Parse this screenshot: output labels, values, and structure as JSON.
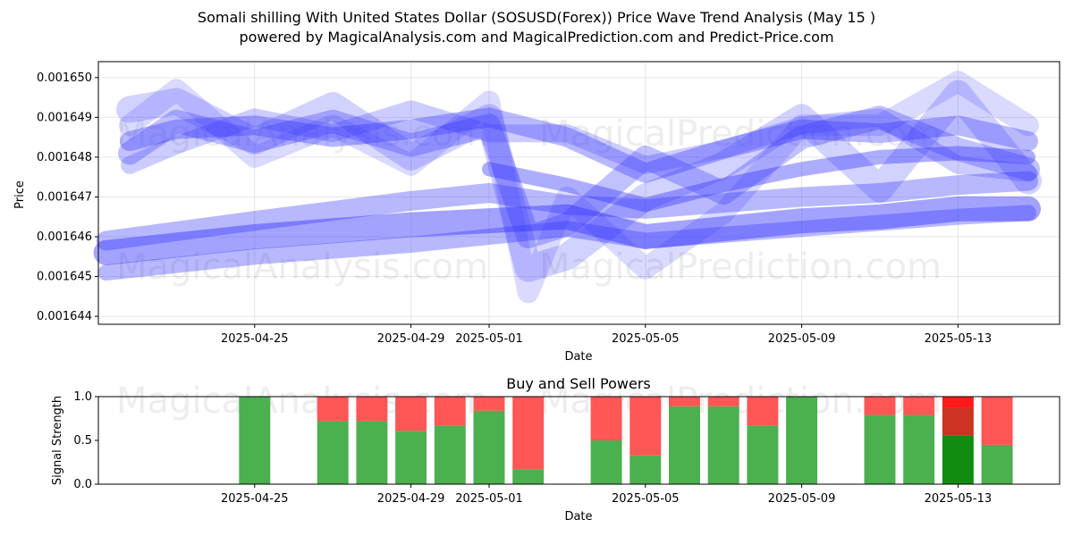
{
  "header": {
    "title": "Somali shilling With United States Dollar (SOSUSD(Forex)) Price Wave Trend Analysis (May 15 )",
    "subtitle": "powered by MagicalAnalysis.com and MagicalPrediction.com and Predict-Price.com"
  },
  "watermarks": [
    "MagicalAnalysis.com",
    "MagicalPrediction.com"
  ],
  "chart_data": [
    {
      "type": "line",
      "xlabel": "Date",
      "ylabel": "Price",
      "ylim": [
        0.0016438,
        0.0016504
      ],
      "x_range": [
        -2,
        22.6
      ],
      "date_start": "2025-04-23",
      "y_ticks": [
        0.001644,
        0.001645,
        0.001646,
        0.001647,
        0.001648,
        0.001649,
        0.00165
      ],
      "y_tick_labels": [
        "0.001644",
        "0.001645",
        "0.001646",
        "0.001647",
        "0.001648",
        "0.001649",
        "0.001650"
      ],
      "x_ticks": [
        2,
        6,
        8,
        12,
        16,
        20
      ],
      "x_tick_labels": [
        "2025-04-25",
        "2025-04-29",
        "2025-05-01",
        "2025-05-05",
        "2025-05-09",
        "2025-05-13"
      ],
      "grid": true,
      "series": [
        {
          "name": "wave-low-1",
          "width": 28,
          "opacity": 0.45,
          "x": [
            -1.8,
            2,
            6,
            10,
            12,
            16,
            18,
            20,
            21.8
          ],
          "y": [
            0.0016456,
            0.001646,
            0.0016463,
            0.0016465,
            0.001646,
            0.0016464,
            0.0016465,
            0.0016467,
            0.0016467
          ]
        },
        {
          "name": "wave-low-2",
          "width": 22,
          "opacity": 0.35,
          "x": [
            -1.8,
            2,
            6,
            8,
            10,
            12,
            16,
            18,
            20,
            21.8
          ],
          "y": [
            0.0016459,
            0.0016464,
            0.0016469,
            0.0016471,
            0.0016468,
            0.0016467,
            0.001647,
            0.0016471,
            0.0016473,
            0.0016474
          ]
        },
        {
          "name": "wave-low-3",
          "width": 18,
          "opacity": 0.35,
          "x": [
            -1.8,
            2,
            6,
            8,
            10,
            12,
            16,
            20,
            21.8
          ],
          "y": [
            0.0016451,
            0.0016455,
            0.0016458,
            0.001646,
            0.0016462,
            0.0016459,
            0.0016462,
            0.0016465,
            0.0016466
          ]
        },
        {
          "name": "wave-mid",
          "width": 16,
          "opacity": 0.4,
          "x": [
            8,
            10,
            12,
            14,
            16,
            18,
            20,
            21.8
          ],
          "y": [
            0.0016477,
            0.0016473,
            0.0016468,
            0.0016473,
            0.0016477,
            0.001648,
            0.0016481,
            0.001648
          ]
        },
        {
          "name": "wave-high-1",
          "width": 22,
          "opacity": 0.35,
          "x": [
            -1.2,
            0,
            2,
            4,
            6,
            8,
            10,
            12,
            14,
            16,
            18,
            20,
            21.8
          ],
          "y": [
            0.0016484,
            0.0016487,
            0.0016488,
            0.0016485,
            0.0016487,
            0.001649,
            0.0016485,
            0.0016476,
            0.0016482,
            0.0016487,
            0.0016486,
            0.0016488,
            0.0016484
          ]
        },
        {
          "name": "wave-high-2",
          "width": 26,
          "opacity": 0.3,
          "x": [
            -1.2,
            0,
            2,
            4,
            6,
            8,
            9,
            10,
            12,
            14,
            16,
            18,
            20,
            21.8
          ],
          "y": [
            0.0016481,
            0.0016489,
            0.0016484,
            0.0016489,
            0.0016483,
            0.0016488,
            0.001646,
            0.0016463,
            0.001648,
            0.0016471,
            0.0016485,
            0.001649,
            0.0016482,
            0.0016477
          ]
        },
        {
          "name": "wave-high-3",
          "width": 30,
          "opacity": 0.22,
          "x": [
            -1.2,
            0,
            2,
            4,
            6,
            8,
            9,
            10,
            12,
            14,
            16,
            18,
            20,
            21.8
          ],
          "y": [
            0.0016492,
            0.0016494,
            0.0016484,
            0.0016493,
            0.001648,
            0.001649,
            0.0016452,
            0.0016455,
            0.001647,
            0.0016478,
            0.001649,
            0.0016472,
            0.0016496,
            0.0016474
          ]
        },
        {
          "name": "wave-spike",
          "width": 24,
          "opacity": 0.18,
          "x": [
            -1.2,
            0,
            2,
            4,
            6,
            8,
            9,
            10,
            12,
            14,
            16,
            18,
            20,
            21.8
          ],
          "y": [
            0.0016488,
            0.0016497,
            0.001648,
            0.0016488,
            0.0016478,
            0.0016494,
            0.0016446,
            0.001647,
            0.0016452,
            0.0016466,
            0.0016488,
            0.0016488,
            0.0016499,
            0.0016488
          ]
        },
        {
          "name": "wave-mix",
          "width": 20,
          "opacity": 0.25,
          "x": [
            -1.2,
            0,
            2,
            4,
            6,
            8,
            10,
            12,
            14,
            16,
            18,
            20,
            21.8
          ],
          "y": [
            0.0016478,
            0.0016483,
            0.001649,
            0.0016486,
            0.0016492,
            0.0016486,
            0.0016486,
            0.0016478,
            0.0016482,
            0.0016488,
            0.001649,
            0.0016478,
            0.0016476
          ]
        }
      ]
    },
    {
      "type": "bar",
      "title": "Buy and Sell Powers",
      "xlabel": "Date",
      "ylabel": "Signal Strength",
      "ylim": [
        0,
        1
      ],
      "y_ticks": [
        0,
        0.5,
        1
      ],
      "y_tick_labels": [
        "0.0",
        "0.5",
        "1.0"
      ],
      "x_ticks": [
        2,
        6,
        8,
        12,
        16,
        20
      ],
      "x_tick_labels": [
        "2025-04-25",
        "2025-04-29",
        "2025-05-01",
        "2025-05-05",
        "2025-05-09",
        "2025-05-13"
      ],
      "x": [
        2,
        4,
        5,
        6,
        7,
        8,
        9,
        11,
        12,
        13,
        14,
        15,
        16,
        18,
        19,
        20,
        21
      ],
      "buy": [
        1.0,
        0.72,
        0.72,
        0.61,
        0.67,
        0.84,
        0.17,
        0.5,
        0.33,
        0.89,
        0.89,
        0.67,
        1.0,
        0.79,
        0.79,
        0.56,
        0.45
      ],
      "sell": [
        0.0,
        0.28,
        0.28,
        0.39,
        0.33,
        0.16,
        0.83,
        0.5,
        0.67,
        0.11,
        0.11,
        0.33,
        0.0,
        0.21,
        0.21,
        0.44,
        0.55
      ],
      "highlight_index": 15,
      "colors": {
        "buy": "#4caf50",
        "sell": "#ff4d4d",
        "buy_dark": "#118c11",
        "sell_dark": "#cc3322",
        "sell_top": "#ff1a1a"
      }
    }
  ]
}
